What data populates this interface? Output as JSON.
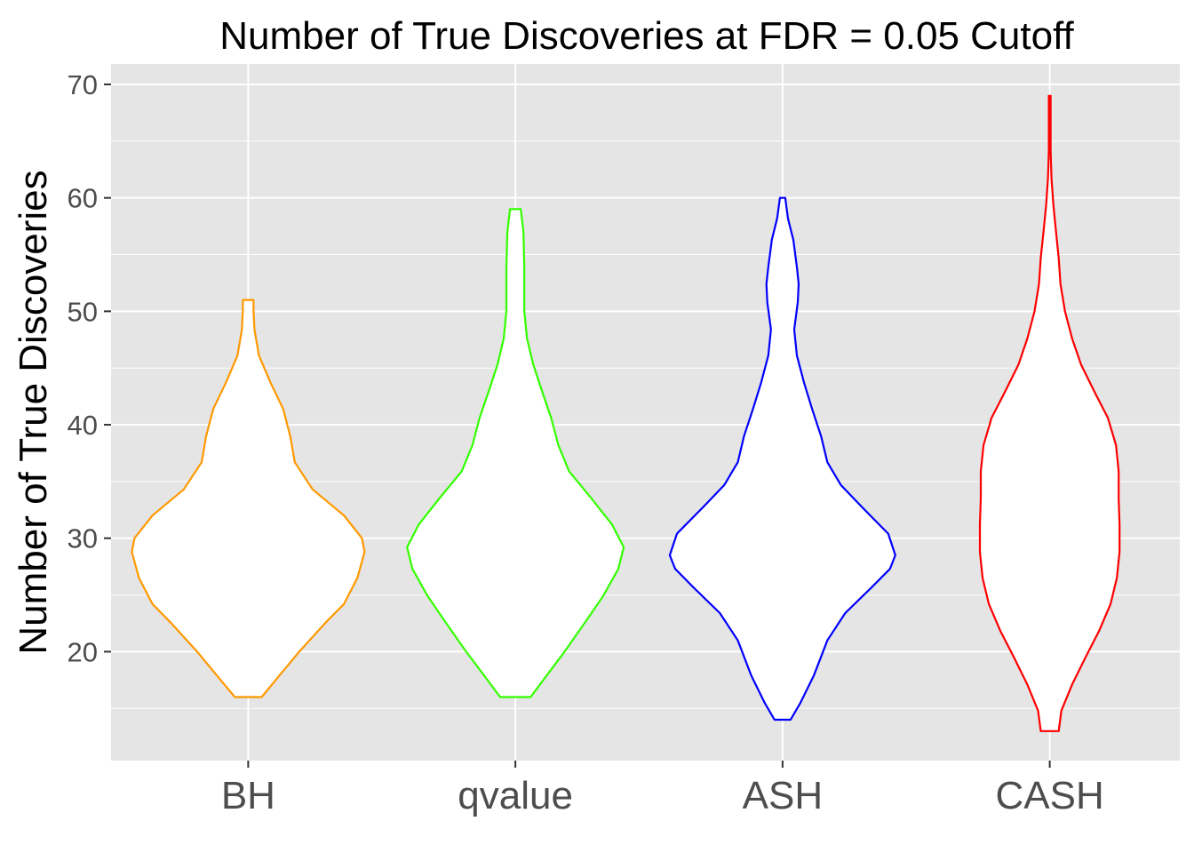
{
  "chart_data": {
    "type": "violin",
    "title": "Number of True Discoveries at FDR = 0.05 Cutoff",
    "xlabel": "",
    "ylabel": "Number of True Discoveries",
    "ylim": [
      10.4,
      71.8
    ],
    "yticks": [
      20,
      30,
      40,
      50,
      60,
      70
    ],
    "yticks_minor": [
      15,
      25,
      35,
      45,
      55,
      65
    ],
    "categories": [
      "BH",
      "qvalue",
      "ASH",
      "CASH"
    ],
    "grid": true,
    "series": [
      {
        "name": "BH",
        "color": "#FF9900",
        "profile": [
          [
            16,
            15
          ],
          [
            17.9,
            35
          ],
          [
            20,
            57
          ],
          [
            22.6,
            87
          ],
          [
            24.2,
            107
          ],
          [
            26.5,
            122
          ],
          [
            28.8,
            130
          ],
          [
            30,
            127
          ],
          [
            32,
            107
          ],
          [
            34.3,
            72
          ],
          [
            36.7,
            52
          ],
          [
            39,
            47
          ],
          [
            41.4,
            39
          ],
          [
            43.7,
            25
          ],
          [
            46.1,
            12
          ],
          [
            48.4,
            7
          ],
          [
            50,
            6
          ],
          [
            51,
            6
          ]
        ]
      },
      {
        "name": "qvalue",
        "color": "#33FF00",
        "profile": [
          [
            16,
            17
          ],
          [
            17.9,
            35
          ],
          [
            20,
            55
          ],
          [
            22.6,
            78
          ],
          [
            24.9,
            98
          ],
          [
            27.3,
            115
          ],
          [
            29.2,
            121
          ],
          [
            31.2,
            108
          ],
          [
            33.5,
            85
          ],
          [
            35.9,
            60
          ],
          [
            38.2,
            48
          ],
          [
            40.6,
            40
          ],
          [
            42.9,
            30
          ],
          [
            45.3,
            20
          ],
          [
            47.6,
            13
          ],
          [
            50,
            10
          ],
          [
            53.9,
            10
          ],
          [
            57,
            9
          ],
          [
            59,
            6
          ]
        ]
      },
      {
        "name": "ASH",
        "color": "#0000FF",
        "profile": [
          [
            14,
            9
          ],
          [
            15.5,
            20
          ],
          [
            17.9,
            35
          ],
          [
            21,
            50
          ],
          [
            23.4,
            70
          ],
          [
            25.7,
            100
          ],
          [
            27.3,
            120
          ],
          [
            28.5,
            126
          ],
          [
            30.4,
            118
          ],
          [
            32.8,
            88
          ],
          [
            34.7,
            65
          ],
          [
            36.7,
            50
          ],
          [
            39,
            43
          ],
          [
            41.4,
            33
          ],
          [
            43.7,
            24
          ],
          [
            46.1,
            16
          ],
          [
            48.4,
            13
          ],
          [
            50.8,
            17
          ],
          [
            52.4,
            18
          ],
          [
            53.9,
            16
          ],
          [
            56.3,
            12
          ],
          [
            58.2,
            6
          ],
          [
            60,
            3
          ]
        ]
      },
      {
        "name": "CASH",
        "color": "#FF0000",
        "profile": [
          [
            13,
            10
          ],
          [
            14.8,
            13
          ],
          [
            17.1,
            25
          ],
          [
            19.5,
            40
          ],
          [
            21.8,
            55
          ],
          [
            24.2,
            68
          ],
          [
            26.5,
            75
          ],
          [
            28.8,
            78
          ],
          [
            31.2,
            78
          ],
          [
            33.5,
            77
          ],
          [
            35.9,
            77
          ],
          [
            38.2,
            74
          ],
          [
            40.6,
            65
          ],
          [
            42.9,
            50
          ],
          [
            45.3,
            35
          ],
          [
            47.6,
            25
          ],
          [
            50,
            17
          ],
          [
            52.4,
            12
          ],
          [
            54.7,
            10
          ],
          [
            57,
            7
          ],
          [
            59.4,
            4
          ],
          [
            61.7,
            2
          ],
          [
            64.1,
            1
          ],
          [
            69,
            1
          ]
        ]
      }
    ],
    "profile_note": "profile entries are [value, relative density]"
  }
}
